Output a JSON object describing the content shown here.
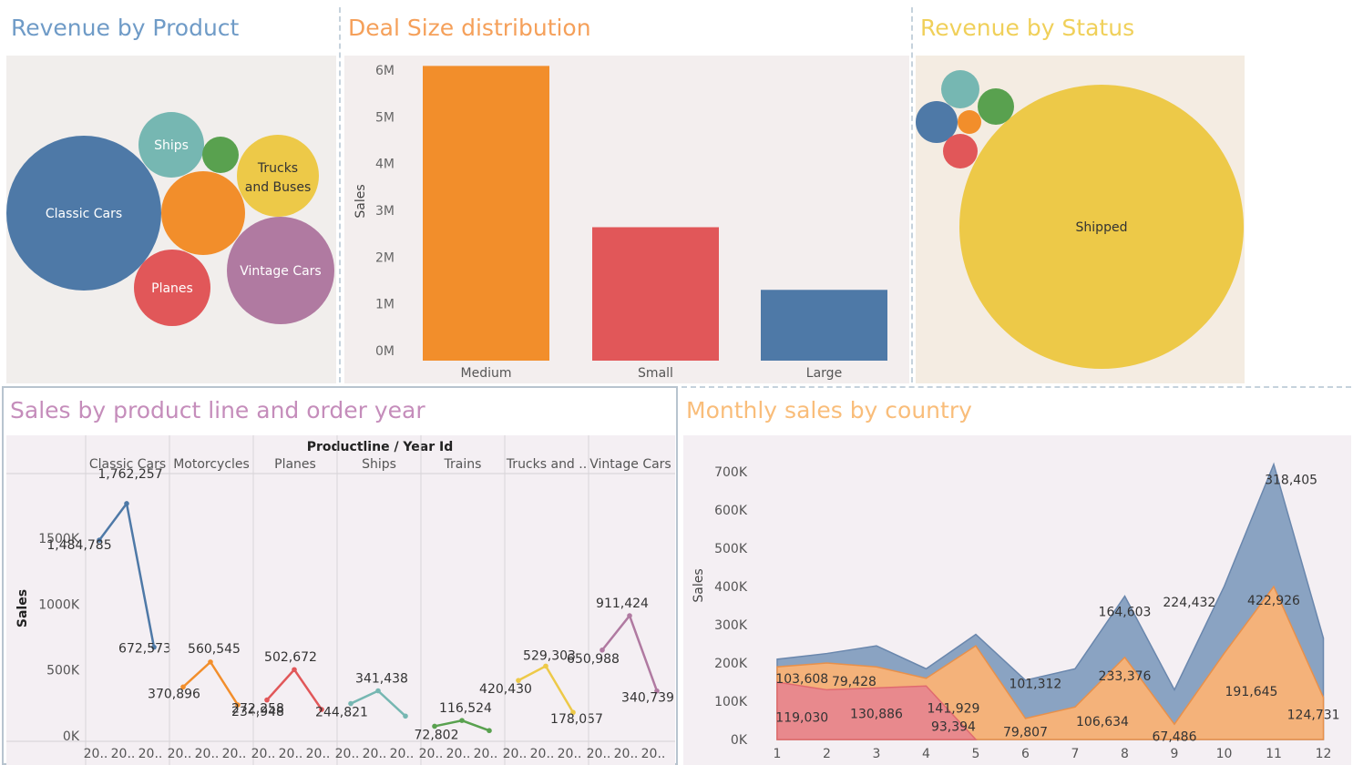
{
  "colors": {
    "blue": "#4e79a7",
    "orange": "#f28e2b",
    "red": "#e15759",
    "teal": "#76b7b2",
    "green": "#59a14f",
    "yellow": "#edc948",
    "purple": "#b07aa1"
  },
  "panels": {
    "revenue_by_product": {
      "title": "Revenue by Product",
      "title_color": "#6f9bc7"
    },
    "deal_size": {
      "title": "Deal Size distribution",
      "title_color": "#f5a05a"
    },
    "revenue_by_status": {
      "title": "Revenue by Status",
      "title_color": "#f0d05a"
    },
    "sales_by_line": {
      "title": "Sales by product line and order year",
      "title_color": "#c58dbb"
    },
    "monthly_sales": {
      "title": "Monthly sales by country",
      "title_color": "#f9bd7a"
    }
  },
  "chart_data": [
    {
      "id": "revenue_by_product",
      "type": "bubble",
      "bubbles": [
        {
          "label": "Classic Cars",
          "color": "#4e79a7"
        },
        {
          "label": "Ships",
          "color": "#76b7b2"
        },
        {
          "label": "",
          "color": "#59a14f"
        },
        {
          "label": "Trucks and Buses",
          "label_lines": [
            "Trucks",
            "and Buses"
          ],
          "color": "#edc948"
        },
        {
          "label": "",
          "color": "#f28e2b"
        },
        {
          "label": "Vintage Cars",
          "color": "#b07aa1"
        },
        {
          "label": "Planes",
          "color": "#e15759"
        }
      ]
    },
    {
      "id": "deal_size",
      "type": "bar",
      "categories": [
        "Medium",
        "Small",
        "Large"
      ],
      "values": [
        6.09,
        2.64,
        1.3
      ],
      "colors": [
        "#f28e2b",
        "#e15759",
        "#4e79a7"
      ],
      "ylabel": "Sales",
      "yticks": [
        "0M",
        "1M",
        "2M",
        "3M",
        "4M",
        "5M",
        "6M"
      ],
      "ylim": [
        0,
        6
      ]
    },
    {
      "id": "revenue_by_status",
      "type": "bubble",
      "bubbles": [
        {
          "label": "Shipped",
          "color": "#edc948"
        },
        {
          "label": "",
          "color": "#76b7b2"
        },
        {
          "label": "",
          "color": "#59a14f"
        },
        {
          "label": "",
          "color": "#4e79a7"
        },
        {
          "label": "",
          "color": "#f28e2b"
        },
        {
          "label": "",
          "color": "#e15759"
        }
      ]
    },
    {
      "id": "sales_by_line",
      "type": "line",
      "header": "Productline / Year Id",
      "ylabel": "Sales",
      "yticks": [
        "0K",
        "500K",
        "1000K",
        "1500K"
      ],
      "ylim": [
        0,
        1900000
      ],
      "xtick": "20..",
      "panels": [
        {
          "name": "Classic Cars",
          "color": "#4e79a7",
          "values": [
            1484785,
            1762257,
            672573
          ],
          "labels": [
            "1,484,785",
            "1,762,257",
            "672,573"
          ]
        },
        {
          "name": "Motorcycles",
          "color": "#f28e2b",
          "values": [
            370896,
            560545,
            234948
          ],
          "labels": [
            "370,896",
            "560,545",
            "234,948"
          ]
        },
        {
          "name": "Planes",
          "color": "#e15759",
          "values": [
            272258,
            502672,
            200000
          ],
          "labels": [
            "272,258",
            "502,672",
            ""
          ]
        },
        {
          "name": "Ships",
          "color": "#76b7b2",
          "values": [
            244821,
            341438,
            150000
          ],
          "labels": [
            "244,821",
            "341,438",
            ""
          ]
        },
        {
          "name": "Trains",
          "color": "#59a14f",
          "values": [
            72802,
            116524,
            40000
          ],
          "labels": [
            "72,802",
            "116,524",
            ""
          ]
        },
        {
          "name": "Trucks and ..",
          "color": "#edc948",
          "values": [
            420430,
            529303,
            178057
          ],
          "labels": [
            "420,430",
            "529,303",
            "178,057"
          ]
        },
        {
          "name": "Vintage Cars",
          "color": "#b07aa1",
          "values": [
            650988,
            911424,
            340739
          ],
          "labels": [
            "650,988",
            "911,424",
            "340,739"
          ]
        }
      ]
    },
    {
      "id": "monthly_sales",
      "type": "area",
      "ylabel": "Sales",
      "yticks": [
        "0K",
        "100K",
        "200K",
        "300K",
        "400K",
        "500K",
        "600K",
        "700K"
      ],
      "ylim": [
        0,
        760000
      ],
      "x": [
        1,
        2,
        3,
        4,
        5,
        6,
        7,
        8,
        9,
        10,
        11,
        12
      ],
      "series": [
        {
          "color": "#8aa3c2",
          "stroke": "#6a87ad",
          "values": [
            210000,
            225000,
            245000,
            185000,
            275000,
            155000,
            185000,
            375000,
            130000,
            400000,
            720000,
            265000
          ]
        },
        {
          "color": "#f4b27a",
          "stroke": "#e8904a",
          "values": [
            190000,
            200000,
            190000,
            160000,
            245000,
            55000,
            85000,
            215000,
            40000,
            225000,
            400000,
            110000
          ]
        },
        {
          "color": "#e8898d",
          "stroke": "#e06a6f",
          "values": [
            150000,
            130000,
            135000,
            140000,
            0,
            null,
            null,
            null,
            null,
            null,
            null,
            null
          ]
        }
      ],
      "labels": [
        {
          "text": "103,608",
          "x": 1.5,
          "y": 160000
        },
        {
          "text": "79,428",
          "x": 2.55,
          "y": 152000
        },
        {
          "text": "119,030",
          "x": 1.5,
          "y": 58000
        },
        {
          "text": "130,886",
          "x": 3.0,
          "y": 68000
        },
        {
          "text": "141,929",
          "x": 4.55,
          "y": 82000
        },
        {
          "text": "93,394",
          "x": 4.55,
          "y": 34000
        },
        {
          "text": "101,312",
          "x": 6.2,
          "y": 147000
        },
        {
          "text": "79,807",
          "x": 6.0,
          "y": 20000
        },
        {
          "text": "106,634",
          "x": 7.55,
          "y": 48000
        },
        {
          "text": "164,603",
          "x": 8.0,
          "y": 335000
        },
        {
          "text": "233,376",
          "x": 8.0,
          "y": 167000
        },
        {
          "text": "67,486",
          "x": 9.0,
          "y": 8000
        },
        {
          "text": "224,432",
          "x": 9.3,
          "y": 360000
        },
        {
          "text": "191,645",
          "x": 10.55,
          "y": 126000
        },
        {
          "text": "318,405",
          "x": 11.35,
          "y": 680000
        },
        {
          "text": "422,926",
          "x": 11.0,
          "y": 365000
        },
        {
          "text": "124,731",
          "x": 11.8,
          "y": 65000
        }
      ]
    }
  ]
}
